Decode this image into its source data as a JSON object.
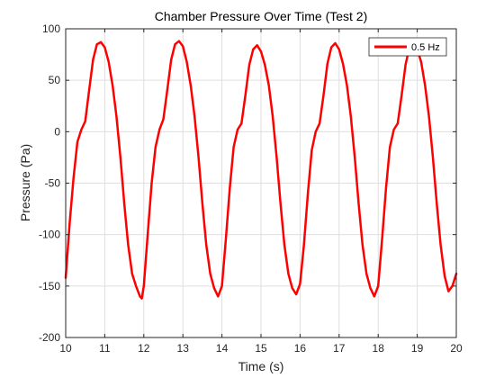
{
  "chart_data": {
    "type": "line",
    "title": "Chamber Pressure Over Time (Test 2)",
    "xlabel": "Time (s)",
    "ylabel": "Pressure (Pa)",
    "xlim": [
      10,
      20
    ],
    "ylim": [
      -200,
      100
    ],
    "x_ticks": [
      "10",
      "11",
      "12",
      "13",
      "14",
      "15",
      "16",
      "17",
      "18",
      "19",
      "20"
    ],
    "y_ticks": [
      "-200",
      "-150",
      "-100",
      "-50",
      "0",
      "50",
      "100"
    ],
    "grid": true,
    "legend_placement": "top-right",
    "series": [
      {
        "name": "0.5 Hz",
        "color": "#ff0000",
        "x": [
          10.0,
          10.1,
          10.2,
          10.3,
          10.4,
          10.5,
          10.6,
          10.7,
          10.8,
          10.9,
          11.0,
          11.1,
          11.2,
          11.3,
          11.4,
          11.5,
          11.6,
          11.7,
          11.8,
          11.9,
          11.95,
          12.0,
          12.1,
          12.2,
          12.3,
          12.4,
          12.5,
          12.6,
          12.7,
          12.8,
          12.9,
          13.0,
          13.1,
          13.2,
          13.3,
          13.4,
          13.5,
          13.6,
          13.7,
          13.8,
          13.9,
          14.0,
          14.1,
          14.2,
          14.3,
          14.4,
          14.5,
          14.6,
          14.7,
          14.8,
          14.9,
          15.0,
          15.1,
          15.2,
          15.3,
          15.4,
          15.5,
          15.6,
          15.7,
          15.8,
          15.9,
          16.0,
          16.1,
          16.2,
          16.3,
          16.4,
          16.5,
          16.6,
          16.7,
          16.8,
          16.9,
          17.0,
          17.1,
          17.2,
          17.3,
          17.4,
          17.5,
          17.6,
          17.7,
          17.8,
          17.9,
          18.0,
          18.1,
          18.2,
          18.3,
          18.4,
          18.5,
          18.6,
          18.7,
          18.8,
          18.9,
          19.0,
          19.1,
          19.2,
          19.3,
          19.4,
          19.5,
          19.6,
          19.7,
          19.8,
          19.9,
          20.0
        ],
        "y": [
          -142,
          -90,
          -45,
          -10,
          2,
          10,
          40,
          70,
          85,
          87,
          82,
          68,
          45,
          15,
          -25,
          -70,
          -110,
          -138,
          -150,
          -160,
          -162,
          -150,
          -100,
          -50,
          -15,
          2,
          12,
          40,
          70,
          85,
          88,
          83,
          68,
          45,
          15,
          -25,
          -70,
          -110,
          -138,
          -152,
          -160,
          -150,
          -105,
          -55,
          -15,
          2,
          8,
          35,
          65,
          80,
          84,
          78,
          65,
          45,
          15,
          -25,
          -70,
          -110,
          -138,
          -152,
          -158,
          -148,
          -110,
          -60,
          -18,
          0,
          8,
          35,
          66,
          82,
          86,
          80,
          66,
          45,
          15,
          -25,
          -70,
          -110,
          -138,
          -152,
          -160,
          -150,
          -105,
          -55,
          -15,
          2,
          8,
          35,
          65,
          82,
          86,
          80,
          68,
          45,
          15,
          -25,
          -70,
          -110,
          -140,
          -155,
          -150,
          -138
        ]
      }
    ]
  }
}
